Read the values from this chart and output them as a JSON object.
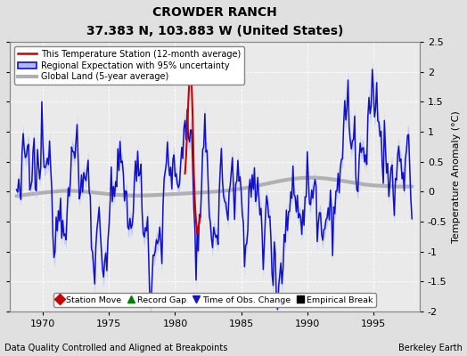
{
  "title": "CROWDER RANCH",
  "subtitle": "37.383 N, 103.883 W (United States)",
  "ylabel": "Temperature Anomaly (°C)",
  "xlabel_left": "Data Quality Controlled and Aligned at Breakpoints",
  "xlabel_right": "Berkeley Earth",
  "ylim": [
    -2.0,
    2.5
  ],
  "xlim": [
    1967.5,
    1998.5
  ],
  "xticks": [
    1970,
    1975,
    1980,
    1985,
    1990,
    1995
  ],
  "yticks": [
    -2,
    -1.5,
    -1,
    -0.5,
    0,
    0.5,
    1,
    1.5,
    2,
    2.5
  ],
  "bg_color": "#e0e0e0",
  "plot_bg_color": "#eaeaea",
  "grid_color": "white",
  "station_color": "#cc0000",
  "regional_color": "#1111cc",
  "regional_fill_color": "#aabbff",
  "global_color": "#b0b0b0",
  "legend_labels": [
    "This Temperature Station (12-month average)",
    "Regional Expectation with 95% uncertainty",
    "Global Land (5-year average)"
  ],
  "bottom_legend": [
    {
      "marker": "D",
      "color": "#cc0000",
      "label": "Station Move"
    },
    {
      "marker": "^",
      "color": "green",
      "label": "Record Gap"
    },
    {
      "marker": "v",
      "color": "#1111cc",
      "label": "Time of Obs. Change"
    },
    {
      "marker": "s",
      "color": "black",
      "label": "Empirical Break"
    }
  ],
  "seed": 12345
}
